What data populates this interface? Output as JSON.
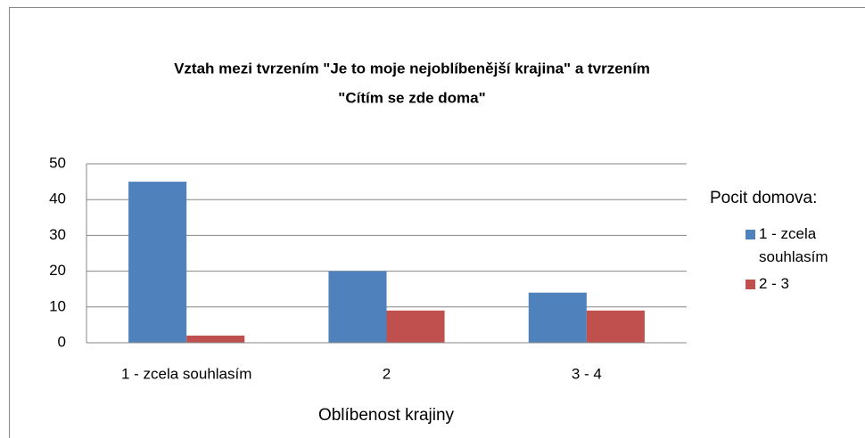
{
  "chart_data": {
    "type": "bar",
    "title": [
      "Vztah mezi tvrzením \"Je to moje nejoblíbenější krajina\"  a tvrzením",
      "\"Cítím se zde doma\""
    ],
    "xlabel": "Oblíbenost krajiny",
    "legend_title": "Pocit domova:",
    "categories": [
      "1 - zcela souhlasím",
      "2",
      "3 - 4"
    ],
    "series": [
      {
        "name": "1 - zcela souhlasím",
        "color": "#4f81bd",
        "values": [
          45,
          20,
          14
        ]
      },
      {
        "name": "2 - 3",
        "color": "#c0504d",
        "values": [
          2,
          9,
          9
        ]
      }
    ],
    "ylim": [
      0,
      50
    ],
    "yticks": [
      0,
      10,
      20,
      30,
      40,
      50
    ],
    "grid": true,
    "legend": "right"
  }
}
